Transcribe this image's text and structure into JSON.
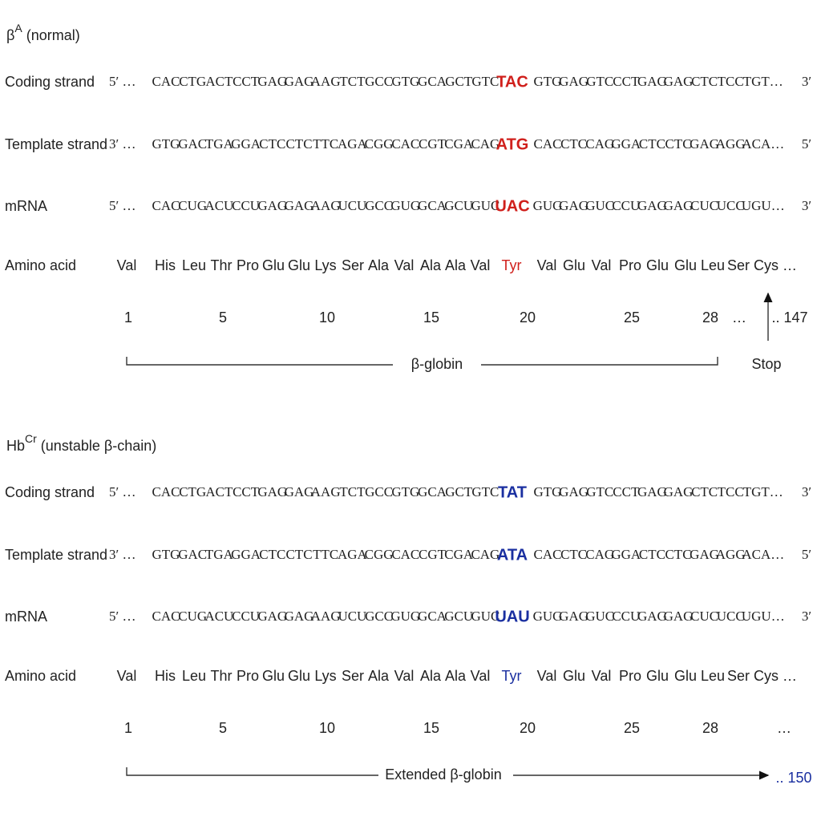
{
  "panels": [
    {
      "title": {
        "main": "β",
        "superscript": "A",
        "suffix": "(normal)"
      },
      "highlight_color": "#d0201c",
      "rows": [
        {
          "label": "Coding strand",
          "start": "5′ …",
          "before": [
            "CAC",
            "CTG",
            "ACT",
            "CCT",
            "GAG",
            "GAG",
            "AAG",
            "TCT",
            "GCC",
            "GTG",
            "GCA",
            "GCT",
            "GTC"
          ],
          "highlight": "TAC",
          "after": [
            "GTG",
            "GAG",
            "GTC",
            "CCT",
            "GAG",
            "GAG",
            "CTC",
            "TCC",
            "TGT…"
          ],
          "end": "3′"
        },
        {
          "label": "Template strand",
          "start": "3′ …",
          "before": [
            "GTG",
            "GAC",
            "TGA",
            "GGA",
            "CTC",
            "CTC",
            "TTC",
            "AGA",
            "CGG",
            "CAC",
            "CGT",
            "CGA",
            "CAG"
          ],
          "highlight": "ATG",
          "after": [
            "CAC",
            "CTC",
            "CAG",
            "GGA",
            "CTC",
            "CTC",
            "GAG",
            "AGG",
            "ACA…"
          ],
          "end": "5′"
        },
        {
          "label": "mRNA",
          "start": "5′ …",
          "before": [
            "CAC",
            "CUG",
            "ACU",
            "CCU",
            "GAG",
            "GAG",
            "AAG",
            "UCU",
            "GCC",
            "GUG",
            "GCA",
            "GCU",
            "GUC"
          ],
          "highlight": "UAC",
          "after": [
            "GUG",
            "GAG",
            "GUC",
            "CCU",
            "GAG",
            "GAG",
            "CUC",
            "UCC",
            "UGU…"
          ],
          "end": "3′"
        }
      ],
      "amino_acid": {
        "label": "Amino acid",
        "before": [
          "Val",
          "His",
          "Leu",
          "Thr",
          "Pro",
          "Glu",
          "Glu",
          "Lys",
          "Ser",
          "Ala",
          "Val",
          "Ala",
          "Ala",
          "Val"
        ],
        "highlight": "Tyr",
        "after": [
          "Val",
          "Glu",
          "Val",
          "Pro",
          "Glu",
          "Glu",
          "Leu",
          "Ser",
          "Cys …"
        ]
      },
      "positions": [
        1,
        5,
        10,
        15,
        20,
        25,
        28
      ],
      "ellipsis": "…",
      "end": ".. 147",
      "bracket_label": "β-globin",
      "stop_label": "Stop"
    },
    {
      "title": {
        "main": "Hb",
        "superscript": "Cr",
        "suffix": "(unstable β-chain)"
      },
      "highlight_color": "#1a2fa0",
      "rows": [
        {
          "label": "Coding strand",
          "start": "5′ …",
          "before": [
            "CAC",
            "CTG",
            "ACT",
            "CCT",
            "GAG",
            "GAG",
            "AAG",
            "TCT",
            "GCC",
            "GTG",
            "GCA",
            "GCT",
            "GTC"
          ],
          "highlight": "TAT",
          "after": [
            "GTG",
            "GAG",
            "GTC",
            "CCT",
            "GAG",
            "GAG",
            "CTC",
            "TCC",
            "TGT…"
          ],
          "end": "3′"
        },
        {
          "label": "Template strand",
          "start": "3′ …",
          "before": [
            "GTG",
            "GAC",
            "TGA",
            "GGA",
            "CTC",
            "CTC",
            "TTC",
            "AGA",
            "CGG",
            "CAC",
            "CGT",
            "CGA",
            "CAG"
          ],
          "highlight": "ATA",
          "after": [
            "CAC",
            "CTC",
            "CAG",
            "GGA",
            "CTC",
            "CTC",
            "GAG",
            "AGG",
            "ACA…"
          ],
          "end": "5′"
        },
        {
          "label": "mRNA",
          "start": "5′ …",
          "before": [
            "CAC",
            "CUG",
            "ACU",
            "CCU",
            "GAG",
            "GAG",
            "AAG",
            "UCU",
            "GCC",
            "GUG",
            "GCA",
            "GCU",
            "GUC"
          ],
          "highlight": "UAU",
          "after": [
            "GUG",
            "GAG",
            "GUC",
            "CCU",
            "GAG",
            "GAG",
            "CUC",
            "UCC",
            "UGU…"
          ],
          "end": "3′"
        }
      ],
      "amino_acid": {
        "label": "Amino acid",
        "before": [
          "Val",
          "His",
          "Leu",
          "Thr",
          "Pro",
          "Glu",
          "Glu",
          "Lys",
          "Ser",
          "Ala",
          "Val",
          "Ala",
          "Ala",
          "Val"
        ],
        "highlight": "Tyr",
        "after": [
          "Val",
          "Glu",
          "Val",
          "Pro",
          "Glu",
          "Glu",
          "Leu",
          "Ser",
          "Cys …"
        ]
      },
      "positions": [
        1,
        5,
        10,
        15,
        20,
        25,
        28
      ],
      "ellipsis": "…",
      "end": ".. 150",
      "bracket_label": "Extended β-globin"
    }
  ]
}
